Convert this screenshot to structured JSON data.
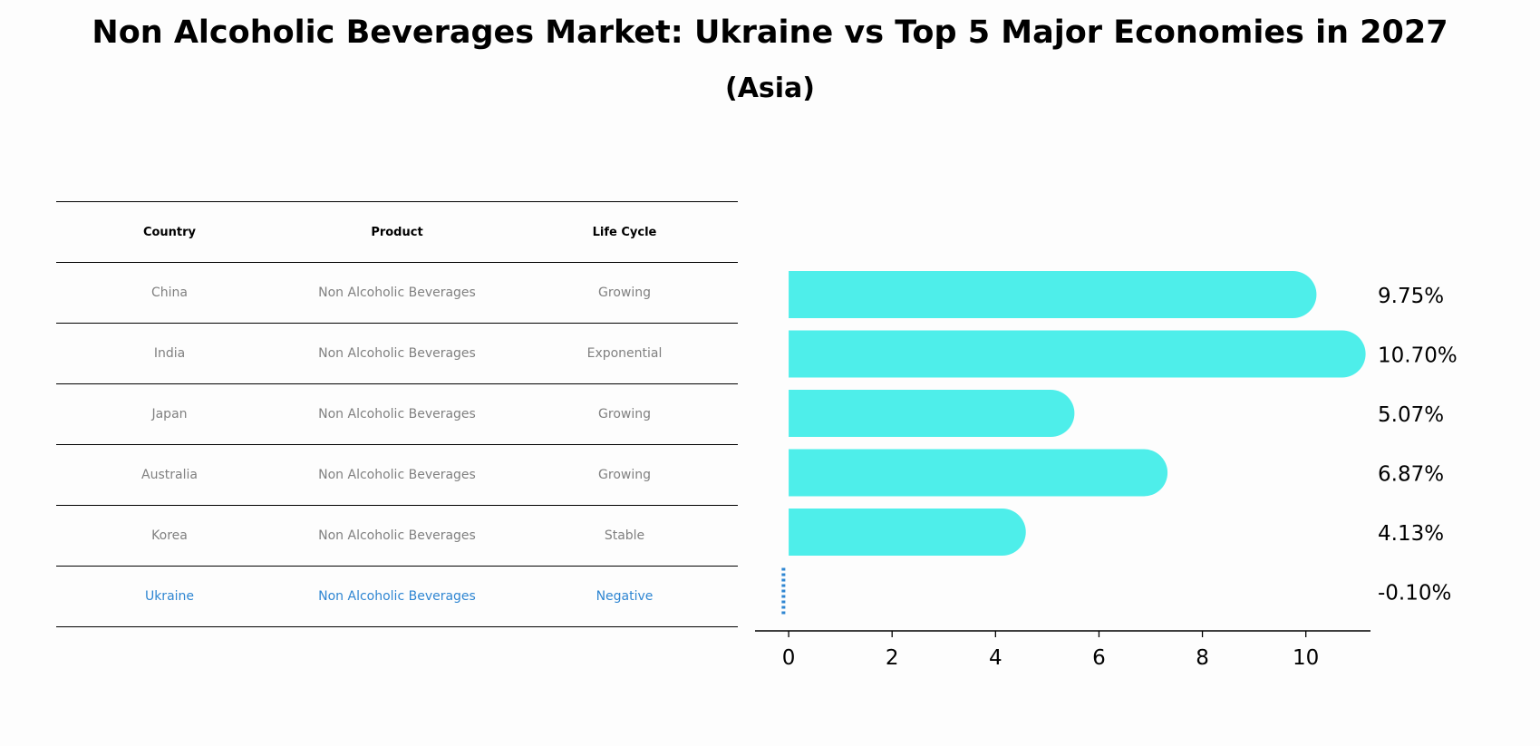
{
  "title": "Non Alcoholic Beverages Market: Ukraine vs Top 5 Major Economies in 2027",
  "subtitle": "(Asia)",
  "table": {
    "headers": [
      "Country",
      "Product",
      "Life Cycle"
    ],
    "rows": [
      {
        "country": "China",
        "product": "Non Alcoholic Beverages",
        "life_cycle": "Growing"
      },
      {
        "country": "India",
        "product": "Non Alcoholic Beverages",
        "life_cycle": "Exponential"
      },
      {
        "country": "Japan",
        "product": "Non Alcoholic Beverages",
        "life_cycle": "Growing"
      },
      {
        "country": "Australia",
        "product": "Non Alcoholic Beverages",
        "life_cycle": "Growing"
      },
      {
        "country": "Korea",
        "product": "Non Alcoholic Beverages",
        "life_cycle": "Stable"
      },
      {
        "country": "Ukraine",
        "product": "Non Alcoholic Beverages",
        "life_cycle": "Negative"
      }
    ]
  },
  "colors": {
    "bar": "#4eeeea",
    "highlight": "#2f86d2",
    "muted": "#808080"
  },
  "chart_data": {
    "type": "bar",
    "orientation": "horizontal",
    "categories": [
      "China",
      "India",
      "Japan",
      "Australia",
      "Korea",
      "Ukraine"
    ],
    "values": [
      9.75,
      10.7,
      5.07,
      6.87,
      4.13,
      -0.1
    ],
    "value_labels": [
      "9.75%",
      "10.70%",
      "5.07%",
      "6.87%",
      "4.13%",
      "-0.10%"
    ],
    "xlim": [
      -0.65,
      11.25
    ],
    "xticks": [
      0,
      2,
      4,
      6,
      8,
      10
    ],
    "xtick_labels": [
      "0",
      "2",
      "4",
      "6",
      "8",
      "10"
    ],
    "grid": false,
    "title": "",
    "xlabel": "",
    "ylabel": ""
  }
}
